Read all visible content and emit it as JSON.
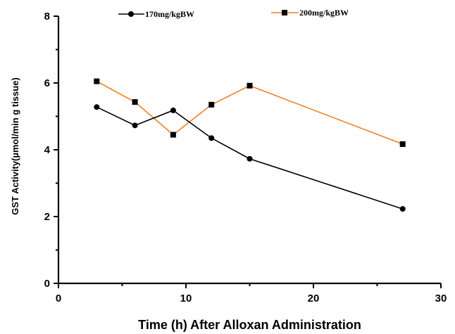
{
  "chart_data": {
    "type": "line",
    "title": "",
    "xlabel": "Time (h) After Alloxan Administration",
    "ylabel": "GST Activity(µmol/min g tissue)",
    "xlim": [
      0,
      30
    ],
    "ylim": [
      0,
      8
    ],
    "x_ticks": [
      "0",
      "10",
      "20",
      "30"
    ],
    "y_ticks": [
      "0",
      "2",
      "4",
      "6",
      "8"
    ],
    "x": [
      3,
      6,
      9,
      12,
      15,
      27
    ],
    "grid": false,
    "legend_position": "top",
    "series": [
      {
        "name": "170mg/kgBW",
        "color": "#000000",
        "marker": "circle",
        "values": [
          5.28,
          4.73,
          5.18,
          4.35,
          3.73,
          2.23
        ]
      },
      {
        "name": "200mg/kgBW",
        "color": "#f07f1e",
        "marker": "square",
        "values": [
          6.05,
          5.43,
          4.45,
          5.35,
          5.92,
          4.17
        ]
      }
    ]
  }
}
